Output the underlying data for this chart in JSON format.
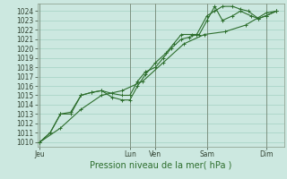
{
  "xlabel": "Pression niveau de la mer( hPa )",
  "ylim": [
    1009.5,
    1024.8
  ],
  "yticks": [
    1010,
    1011,
    1012,
    1013,
    1014,
    1015,
    1016,
    1017,
    1018,
    1019,
    1020,
    1021,
    1022,
    1023,
    1024
  ],
  "background_color": "#cce8e0",
  "grid_color": "#99ccbb",
  "line_color": "#2d6e2d",
  "day_labels": [
    "Jeu",
    "Lun",
    "Ven",
    "Sam",
    "Dim"
  ],
  "day_x": [
    0.0,
    3.5,
    4.5,
    6.5,
    8.8
  ],
  "vline_x": [
    0.0,
    3.5,
    4.5,
    6.5,
    8.8
  ],
  "xlim": [
    -0.1,
    9.5
  ],
  "line1_x": [
    0.0,
    0.4,
    0.8,
    1.2,
    1.6,
    2.0,
    2.4,
    2.8,
    3.2,
    3.5,
    3.8,
    4.1,
    4.5,
    4.8,
    5.1,
    5.5,
    5.8,
    6.1,
    6.5,
    6.8,
    7.1,
    7.5,
    7.8,
    8.1,
    8.5,
    8.8,
    9.2
  ],
  "line1_y": [
    1010.0,
    1011.0,
    1013.0,
    1013.2,
    1015.0,
    1015.3,
    1015.5,
    1015.2,
    1015.0,
    1015.0,
    1016.5,
    1017.5,
    1018.0,
    1019.0,
    1020.0,
    1021.0,
    1021.2,
    1021.5,
    1023.5,
    1024.0,
    1024.5,
    1024.5,
    1024.2,
    1024.0,
    1023.2,
    1023.5,
    1024.0
  ],
  "line2_x": [
    0.0,
    0.4,
    0.8,
    1.2,
    1.6,
    2.0,
    2.4,
    2.8,
    3.2,
    3.5,
    3.8,
    4.1,
    4.5,
    4.9,
    5.2,
    5.5,
    5.9,
    6.2,
    6.5,
    6.8,
    7.1,
    7.5,
    7.8,
    8.2,
    8.5,
    8.8,
    9.2
  ],
  "line2_y": [
    1010.0,
    1011.0,
    1013.0,
    1013.0,
    1015.0,
    1015.3,
    1015.5,
    1014.8,
    1014.5,
    1014.5,
    1016.0,
    1017.2,
    1018.5,
    1019.5,
    1020.5,
    1021.5,
    1021.5,
    1021.5,
    1023.0,
    1024.5,
    1023.0,
    1023.5,
    1024.0,
    1023.5,
    1023.2,
    1023.5,
    1024.0
  ],
  "line3_x": [
    0.0,
    0.8,
    1.6,
    2.4,
    3.2,
    4.0,
    4.8,
    5.6,
    6.4,
    7.2,
    8.0,
    8.8,
    9.2
  ],
  "line3_y": [
    1010.0,
    1011.5,
    1013.5,
    1015.0,
    1015.5,
    1016.5,
    1018.5,
    1020.5,
    1021.5,
    1021.8,
    1022.5,
    1023.8,
    1024.0
  ],
  "tick_fontsize": 5.5,
  "label_fontsize": 7,
  "marker_size": 2.5,
  "linewidth": 0.8
}
